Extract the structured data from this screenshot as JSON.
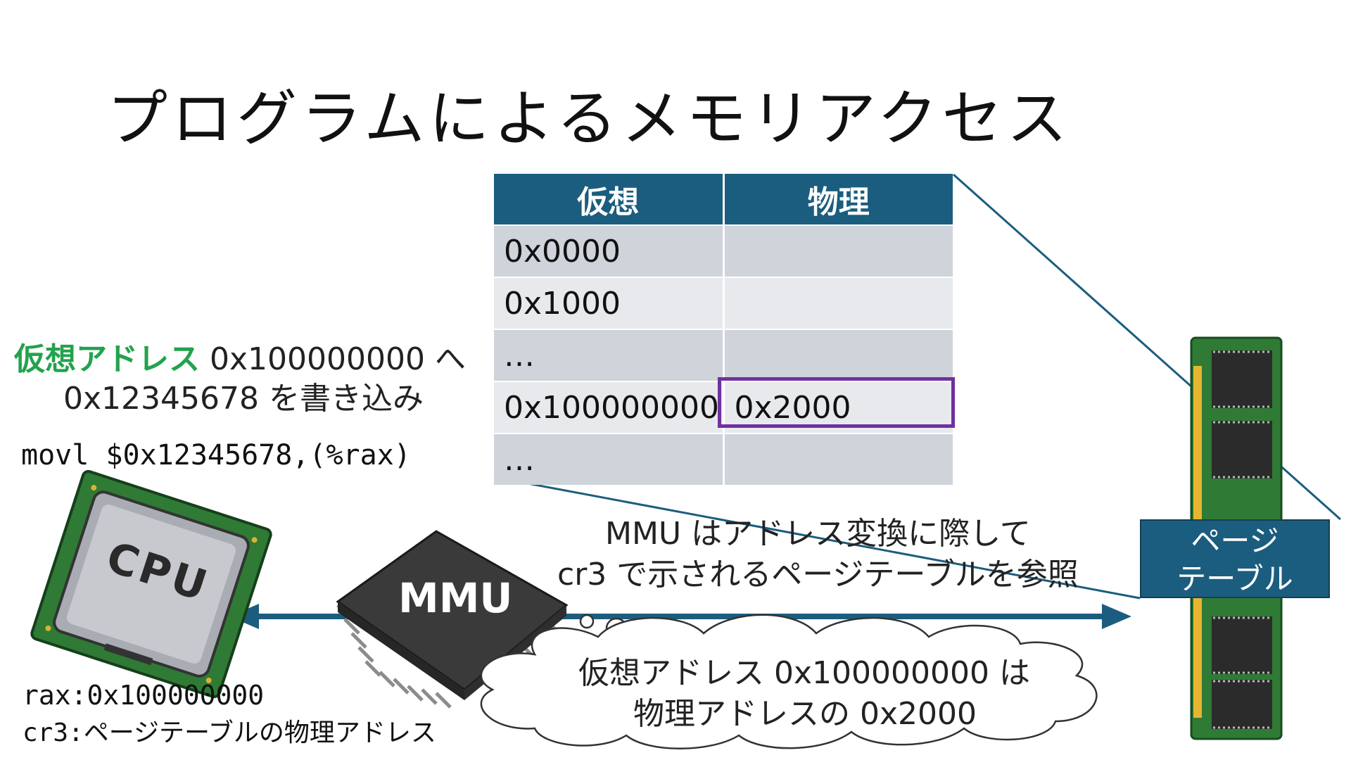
{
  "title": "プログラムによるメモリアクセス",
  "table": {
    "headers": [
      "仮想",
      "物理"
    ],
    "rows": [
      [
        "0x0000",
        ""
      ],
      [
        "0x1000",
        ""
      ],
      [
        "…",
        ""
      ],
      [
        "0x100000000",
        "0x2000"
      ],
      [
        "…",
        ""
      ]
    ]
  },
  "left_caption": {
    "green_part": "仮想アドレス",
    "line1_rest": " 0x100000000 へ",
    "line2": "0x12345678 を書き込み"
  },
  "instruction": "movl $0x12345678,(%rax)",
  "registers": {
    "rax": "rax:0x100000000",
    "cr3_label": "cr3:",
    "cr3_value": "ページテーブルの物理アドレス"
  },
  "cpu_chip_label": "CPU",
  "mmu_chip_label": "MMU",
  "mmu_note": {
    "line1": "MMU はアドレス変換に際して",
    "line2": "cr3 で示されるページテーブルを参照"
  },
  "thought_cloud": {
    "line1": "仮想アドレス 0x100000000 は",
    "line2": "物理アドレスの 0x2000"
  },
  "page_table_box": {
    "line1": "ページ",
    "line2": "テーブル"
  },
  "colors": {
    "table_header": "#1b5d7e",
    "highlight": "#7030a0",
    "virtual_address_green": "#23a24d",
    "arrow": "#1b5d7e"
  }
}
